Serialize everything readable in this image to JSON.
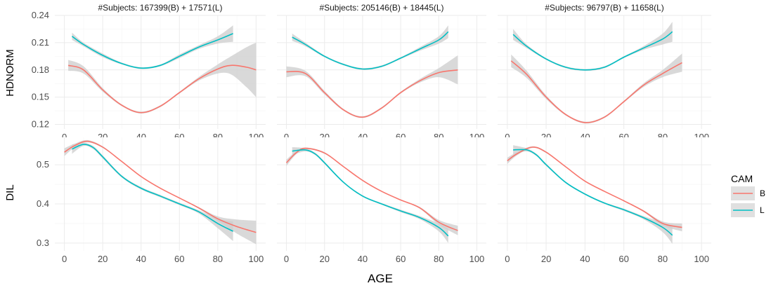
{
  "chart_data": {
    "type": "line",
    "xlabel": "AGE",
    "facet_titles": [
      "#Subjects: 167399(B) + 17571(L)",
      "#Subjects: 205146(B) + 18445(L)",
      "#Subjects: 96797(B) + 11658(L)"
    ],
    "rows": [
      {
        "ylabel": "HDNORM",
        "ylim": [
          0.115,
          0.24
        ],
        "yticks": [
          "0.12",
          "0.15",
          "0.18",
          "0.21",
          "0.24"
        ],
        "ytick_values": [
          0.12,
          0.15,
          0.18,
          0.21,
          0.24
        ],
        "panels": [
          {
            "series": [
              {
                "name": "B",
                "x": [
                  2,
                  10,
                  20,
                  30,
                  40,
                  50,
                  60,
                  70,
                  80,
                  87,
                  95,
                  100
                ],
                "y": [
                  0.185,
                  0.18,
                  0.158,
                  0.141,
                  0.133,
                  0.14,
                  0.155,
                  0.17,
                  0.181,
                  0.185,
                  0.183,
                  0.18
                ],
                "ci": [
                  0.006,
                  0.004,
                  0.002,
                  0.001,
                  0.001,
                  0.001,
                  0.001,
                  0.002,
                  0.005,
                  0.01,
                  0.022,
                  0.03
                ]
              },
              {
                "name": "L",
                "x": [
                  4,
                  10,
                  20,
                  30,
                  40,
                  50,
                  60,
                  70,
                  80,
                  88
                ],
                "y": [
                  0.217,
                  0.208,
                  0.196,
                  0.187,
                  0.182,
                  0.185,
                  0.195,
                  0.205,
                  0.213,
                  0.22
                ],
                "ci": [
                  0.004,
                  0.002,
                  0.002,
                  0.001,
                  0.001,
                  0.001,
                  0.002,
                  0.002,
                  0.004,
                  0.009
                ]
              }
            ]
          },
          {
            "series": [
              {
                "name": "B",
                "x": [
                  0,
                  10,
                  20,
                  30,
                  40,
                  50,
                  60,
                  70,
                  80,
                  90
                ],
                "y": [
                  0.178,
                  0.176,
                  0.155,
                  0.136,
                  0.128,
                  0.138,
                  0.155,
                  0.168,
                  0.177,
                  0.18
                ],
                "ci": [
                  0.006,
                  0.003,
                  0.002,
                  0.001,
                  0.001,
                  0.001,
                  0.001,
                  0.002,
                  0.005,
                  0.016
                ]
              },
              {
                "name": "L",
                "x": [
                  3,
                  10,
                  20,
                  30,
                  40,
                  50,
                  60,
                  70,
                  80,
                  85
                ],
                "y": [
                  0.216,
                  0.208,
                  0.195,
                  0.186,
                  0.181,
                  0.184,
                  0.193,
                  0.203,
                  0.213,
                  0.222
                ],
                "ci": [
                  0.004,
                  0.002,
                  0.001,
                  0.001,
                  0.001,
                  0.001,
                  0.001,
                  0.002,
                  0.004,
                  0.007
                ]
              }
            ]
          },
          {
            "series": [
              {
                "name": "B",
                "x": [
                  2,
                  10,
                  20,
                  30,
                  40,
                  50,
                  60,
                  70,
                  80,
                  90
                ],
                "y": [
                  0.19,
                  0.175,
                  0.15,
                  0.131,
                  0.122,
                  0.128,
                  0.145,
                  0.163,
                  0.176,
                  0.188
                ],
                "ci": [
                  0.007,
                  0.004,
                  0.002,
                  0.001,
                  0.001,
                  0.001,
                  0.001,
                  0.002,
                  0.004,
                  0.01
                ]
              },
              {
                "name": "L",
                "x": [
                  3,
                  10,
                  20,
                  30,
                  40,
                  50,
                  60,
                  70,
                  80,
                  85
                ],
                "y": [
                  0.219,
                  0.206,
                  0.192,
                  0.183,
                  0.18,
                  0.183,
                  0.194,
                  0.204,
                  0.214,
                  0.222
                ],
                "ci": [
                  0.006,
                  0.002,
                  0.001,
                  0.001,
                  0.001,
                  0.001,
                  0.001,
                  0.002,
                  0.006,
                  0.011
                ]
              }
            ]
          }
        ]
      },
      {
        "ylabel": "DIL",
        "ylim": [
          0.28,
          0.57
        ],
        "yticks": [
          "0.3",
          "0.4",
          "0.5"
        ],
        "ytick_values": [
          0.3,
          0.4,
          0.5
        ],
        "panels": [
          {
            "series": [
              {
                "name": "B",
                "x": [
                  0,
                  5,
                  12,
                  20,
                  30,
                  40,
                  50,
                  60,
                  70,
                  80,
                  90,
                  100
                ],
                "y": [
                  0.532,
                  0.548,
                  0.56,
                  0.545,
                  0.508,
                  0.47,
                  0.44,
                  0.415,
                  0.39,
                  0.362,
                  0.342,
                  0.327
                ],
                "ci": [
                  0.01,
                  0.005,
                  0.003,
                  0.002,
                  0.001,
                  0.001,
                  0.001,
                  0.001,
                  0.002,
                  0.006,
                  0.018,
                  0.03
                ]
              },
              {
                "name": "L",
                "x": [
                  4,
                  10,
                  15,
                  20,
                  30,
                  40,
                  50,
                  60,
                  70,
                  80,
                  88
                ],
                "y": [
                  0.54,
                  0.552,
                  0.544,
                  0.52,
                  0.47,
                  0.44,
                  0.42,
                  0.4,
                  0.38,
                  0.35,
                  0.33
                ],
                "ci": [
                  0.012,
                  0.004,
                  0.004,
                  0.004,
                  0.003,
                  0.003,
                  0.003,
                  0.003,
                  0.004,
                  0.012,
                  0.025
                ]
              }
            ]
          },
          {
            "series": [
              {
                "name": "B",
                "x": [
                  0,
                  5,
                  10,
                  20,
                  30,
                  40,
                  50,
                  60,
                  70,
                  80,
                  90
                ],
                "y": [
                  0.505,
                  0.53,
                  0.542,
                  0.53,
                  0.495,
                  0.46,
                  0.432,
                  0.41,
                  0.39,
                  0.353,
                  0.332
                ],
                "ci": [
                  0.008,
                  0.004,
                  0.002,
                  0.002,
                  0.001,
                  0.001,
                  0.001,
                  0.001,
                  0.002,
                  0.006,
                  0.012
                ]
              },
              {
                "name": "L",
                "x": [
                  3,
                  10,
                  15,
                  20,
                  30,
                  40,
                  50,
                  60,
                  70,
                  80,
                  85
                ],
                "y": [
                  0.535,
                  0.538,
                  0.528,
                  0.505,
                  0.455,
                  0.42,
                  0.4,
                  0.382,
                  0.365,
                  0.34,
                  0.318
                ],
                "ci": [
                  0.01,
                  0.004,
                  0.003,
                  0.003,
                  0.002,
                  0.002,
                  0.002,
                  0.003,
                  0.004,
                  0.01,
                  0.018
                ]
              }
            ]
          },
          {
            "series": [
              {
                "name": "B",
                "x": [
                  0,
                  5,
                  13,
                  20,
                  30,
                  40,
                  50,
                  60,
                  70,
                  80,
                  90
                ],
                "y": [
                  0.51,
                  0.528,
                  0.545,
                  0.532,
                  0.495,
                  0.458,
                  0.432,
                  0.408,
                  0.382,
                  0.35,
                  0.34
                ],
                "ci": [
                  0.008,
                  0.004,
                  0.002,
                  0.002,
                  0.001,
                  0.001,
                  0.001,
                  0.001,
                  0.002,
                  0.005,
                  0.01
                ]
              },
              {
                "name": "L",
                "x": [
                  3,
                  10,
                  15,
                  20,
                  30,
                  40,
                  50,
                  60,
                  70,
                  80,
                  85
                ],
                "y": [
                  0.538,
                  0.538,
                  0.525,
                  0.5,
                  0.455,
                  0.425,
                  0.402,
                  0.385,
                  0.365,
                  0.34,
                  0.32
                ],
                "ci": [
                  0.012,
                  0.004,
                  0.003,
                  0.003,
                  0.002,
                  0.002,
                  0.002,
                  0.003,
                  0.004,
                  0.012,
                  0.022
                ]
              }
            ]
          }
        ]
      }
    ],
    "xlim": [
      -5,
      105
    ],
    "xticks": [
      "0",
      "20",
      "40",
      "60",
      "80",
      "100"
    ],
    "xtick_values": [
      0,
      20,
      40,
      60,
      80,
      100
    ],
    "grid": true,
    "legend": {
      "title": "CAM",
      "placement": "right",
      "items": [
        {
          "label": "B",
          "color": "#F8766D"
        },
        {
          "label": "L",
          "color": "#00BFC4"
        }
      ]
    },
    "ci_color": "#cccccc"
  }
}
